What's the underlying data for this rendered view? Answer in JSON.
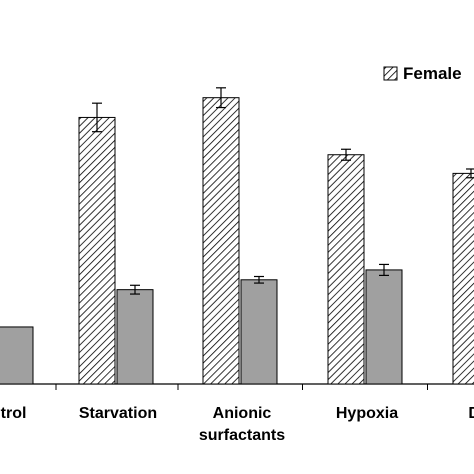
{
  "chart_data": {
    "type": "bar",
    "categories": [
      [
        "Control"
      ],
      [
        "Starvation"
      ],
      [
        "Anionic",
        "surfactants"
      ],
      [
        "Hypoxia"
      ],
      [
        "Diesel"
      ]
    ],
    "visible_category_text": [
      "rol",
      "Starvation",
      "Anionic surfactants",
      "Hypoxia",
      "Dies"
    ],
    "series": [
      {
        "name": "Female",
        "pattern": "hatched",
        "values": [
          null,
          243,
          261,
          209,
          192
        ],
        "errors": [
          null,
          13,
          9,
          5,
          4
        ]
      },
      {
        "name": "",
        "fill": "#a0a0a0",
        "values": [
          52,
          86,
          95,
          104,
          null
        ],
        "errors": [
          null,
          4,
          3,
          5,
          null
        ]
      }
    ],
    "ylim": [
      0,
      330
    ],
    "xlabel": "",
    "ylabel": "",
    "legend_position": "top-right"
  }
}
